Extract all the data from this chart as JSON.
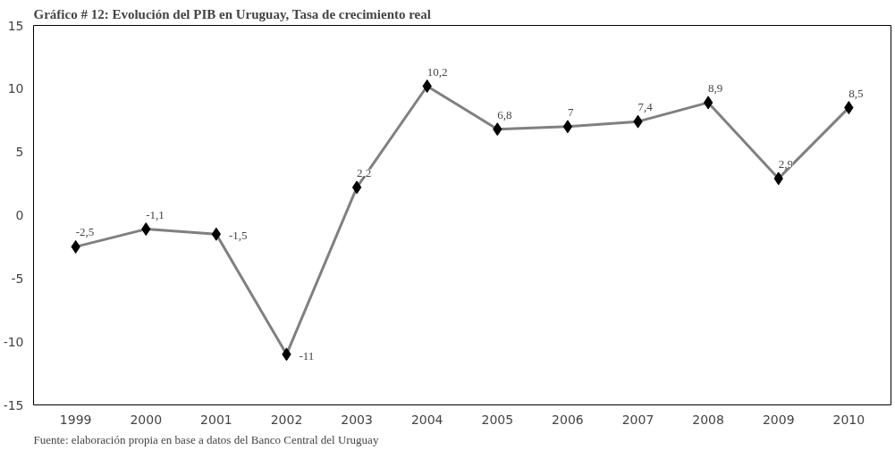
{
  "chart_data": {
    "type": "line",
    "title": "Gráfico # 12: Evolución del PIB en Uruguay, Tasa de crecimiento real",
    "categories": [
      "1999",
      "2000",
      "2001",
      "2002",
      "2003",
      "2004",
      "2005",
      "2006",
      "2007",
      "2008",
      "2009",
      "2010"
    ],
    "series": [
      {
        "color": "#808080",
        "values": [
          -2.5,
          -1.1,
          -1.5,
          -11,
          2.2,
          10.2,
          6.8,
          7,
          7.4,
          8.9,
          2.9,
          8.5
        ],
        "value_labels": [
          "-2,5",
          "-1,1",
          "-1,5",
          "-11",
          "2,2",
          "10,2",
          "6,8",
          "7",
          "7,4",
          "8,9",
          "2,9",
          "8,5"
        ]
      }
    ],
    "ylim": [
      -15,
      15
    ],
    "yticks": [
      -15,
      -10,
      -5,
      0,
      5,
      10,
      15
    ],
    "grid": false,
    "marker": "diamond",
    "line_style": "solid",
    "annotations": [
      "Fuente: elaboración propia en base a datos del Banco Central del Uruguay"
    ]
  }
}
